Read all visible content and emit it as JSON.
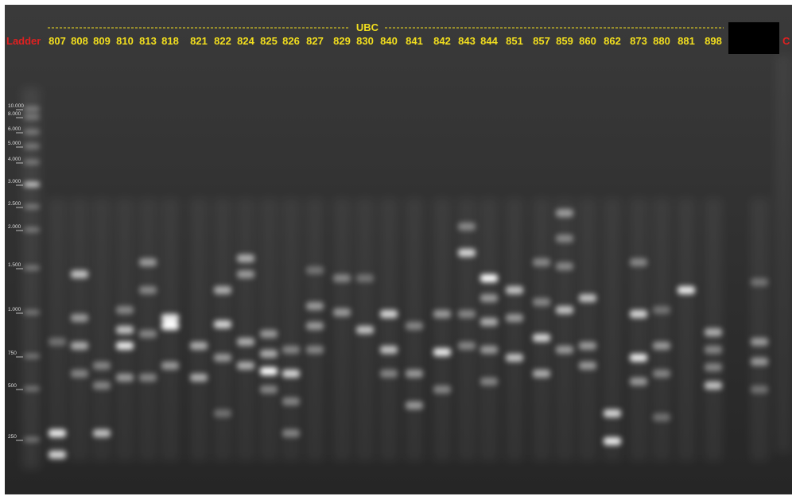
{
  "header": {
    "ladder_label": "Ladder",
    "group_label": "UBC",
    "control_label": "C"
  },
  "lanes": [
    "807",
    "808",
    "809",
    "810",
    "813",
    "818",
    "821",
    "822",
    "824",
    "825",
    "826",
    "827",
    "829",
    "830",
    "840",
    "841",
    "842",
    "843",
    "844",
    "851",
    "857",
    "859",
    "860",
    "862",
    "873",
    "880",
    "881",
    "898"
  ],
  "ladder_sizes": [
    "10.000",
    "8.000",
    "6.000",
    "5.000",
    "4.000",
    "3.000",
    "2.500",
    "2.000",
    "1.500",
    "1.000",
    "750",
    "500",
    "250"
  ]
}
